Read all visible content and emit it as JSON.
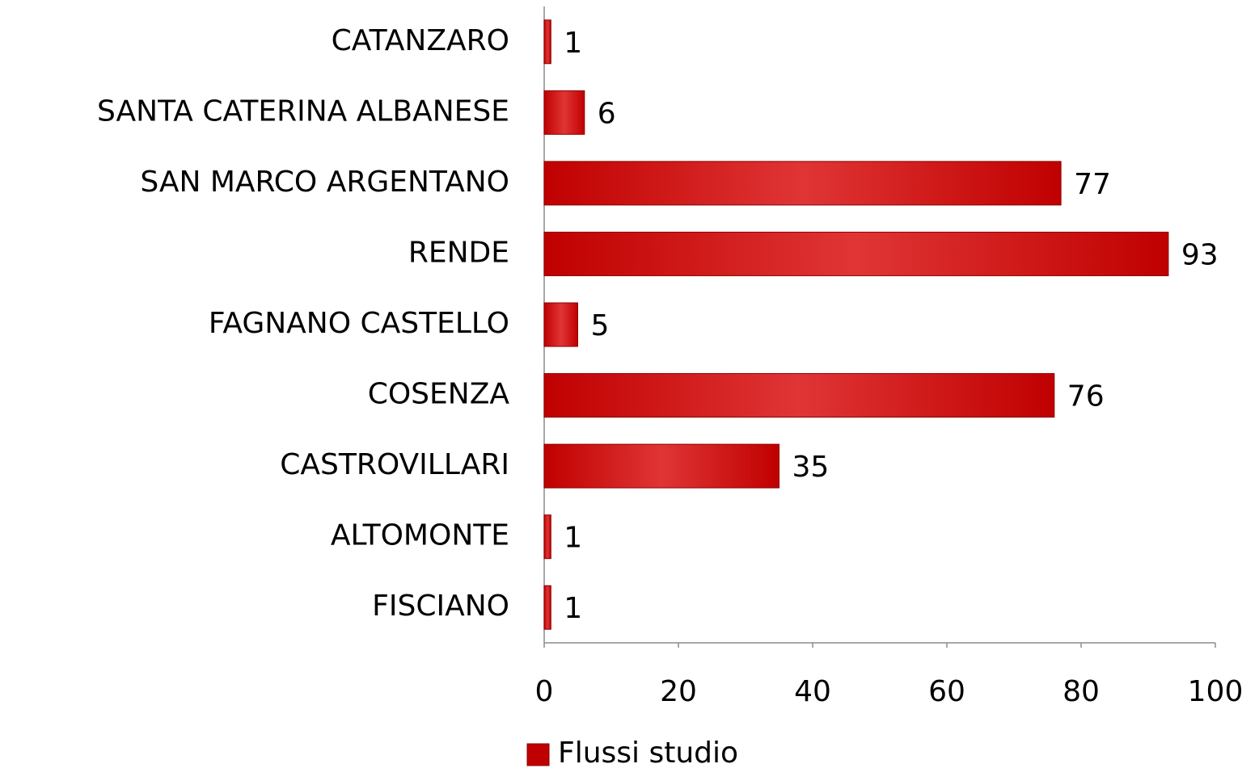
{
  "chart_data": {
    "type": "bar",
    "orientation": "horizontal",
    "categories": [
      "CATANZARO",
      "SANTA CATERINA ALBANESE",
      "SAN MARCO ARGENTANO",
      "RENDE",
      "FAGNANO CASTELLO",
      "COSENZA",
      "CASTROVILLARI",
      "ALTOMONTE",
      "FISCIANO"
    ],
    "series": [
      {
        "name": "Flussi studio",
        "color": "#c00000",
        "values": [
          1,
          6,
          77,
          93,
          5,
          76,
          35,
          1,
          1
        ]
      }
    ],
    "xlim": [
      0,
      100
    ],
    "xticks": [
      0,
      20,
      40,
      60,
      80,
      100
    ],
    "legend": "bottom"
  }
}
